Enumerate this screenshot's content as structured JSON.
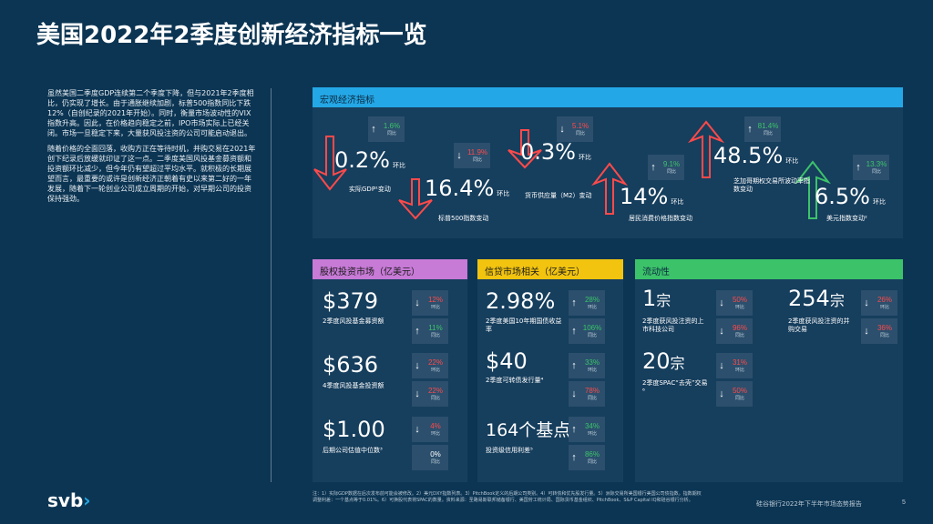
{
  "title": "美国2022年2季度创新经济指标一览",
  "intro": {
    "p1": "虽然美国二季度GDP连续第二个季度下降，但与2021年2季度相比，仍实现了增长。由于通胀继续加剧，标普500指数同比下跌12%（自创纪录的2021年开始）。同时，衡量市场波动性的VIX指数升高。因此，在价格趋向稳定之前，IPO市场实际上已经关闭。市场一旦稳定下来，大量获风投注资的公司可能启动退出。",
    "p2": "随着价格的全面回落，收购方正在等待时机，并购交易在2021年创下纪录后放缓就印证了这一点。二季度美国风投基金募资额和投资额环比减少，但今年仍有望超过平均水平。就积极的长期展望而言，最重要的或许是创新经济正朝着有史以来第二好的一年发展，随着下一轮创业公司成立周期的开始，对早期公司的投资保持强劲。"
  },
  "macro": {
    "header": "宏观经济指标",
    "items": [
      {
        "value": "0.2%",
        "suffix": "环比",
        "label": "实际GDP¹变动",
        "chg": "1.6%",
        "chg_label": "同比",
        "dir": "up"
      },
      {
        "value": "16.4%",
        "suffix": "环比",
        "label": "标普500指数变动",
        "chg": "11.9%",
        "chg_label": "同比",
        "dir": "down"
      },
      {
        "value": "0.3%",
        "suffix": "环比",
        "label": "货币供应量（M2）变动",
        "chg": "5.1%",
        "chg_label": "同比",
        "dir": "down"
      },
      {
        "value": "14%",
        "suffix": "环比",
        "label": "居民消费价格指数变动",
        "chg": "9.1%",
        "chg_label": "同比",
        "dir": "up"
      },
      {
        "value": "48.5%",
        "suffix": "环比",
        "label": "芝加哥期权交易所波动率指数变动",
        "chg": "81.4%",
        "chg_label": "同比",
        "dir": "up"
      },
      {
        "value": "6.5%",
        "suffix": "环比",
        "label": "美元指数变动²",
        "chg": "13.3%",
        "chg_label": "同比",
        "dir": "up"
      }
    ]
  },
  "equity": {
    "header": "股权投资市场（亿美元）",
    "items": [
      {
        "value": "$379",
        "label": "2季度风投基金募资额",
        "chg1": "12%",
        "chg1_label": "环比",
        "dir1": "down",
        "chg2": "11%",
        "chg2_label": "同比",
        "dir2": "up"
      },
      {
        "value": "$636",
        "label": "4季度风投基金投资额",
        "chg1": "22%",
        "chg1_label": "环比",
        "dir1": "down",
        "chg2": "22%",
        "chg2_label": "同比",
        "dir2": "down"
      },
      {
        "value": "$1.00",
        "label": "后期公司估值中位数³",
        "chg1": "4%",
        "chg1_label": "环比",
        "dir1": "down",
        "chg2": "0%",
        "chg2_label": "同比",
        "dir2": "neutral"
      }
    ]
  },
  "credit": {
    "header": "信贷市场相关（亿美元）",
    "items": [
      {
        "value": "2.98%",
        "label": "2季度美国10年期国债收益率",
        "chg1": "28%",
        "chg1_label": "环比",
        "dir1": "up",
        "chg2": "106%",
        "chg2_label": "同比",
        "dir2": "up"
      },
      {
        "value": "$40",
        "label": "2季度可转债发行量⁴",
        "chg1": "33%",
        "chg1_label": "环比",
        "dir1": "up",
        "chg2": "78%",
        "chg2_label": "同比",
        "dir2": "down"
      },
      {
        "value": "164个基点",
        "label": "投资级信用利差⁵",
        "chg1": "34%",
        "chg1_label": "环比",
        "dir1": "up",
        "chg2": "86%",
        "chg2_label": "同比",
        "dir2": "up"
      }
    ]
  },
  "liquidity": {
    "header": "流动性",
    "items": [
      {
        "value": "1",
        "unit": "宗",
        "label": "2季度获风投注资的上市科技公司",
        "chg1": "50%",
        "chg1_label": "环比",
        "dir1": "down",
        "chg2": "96%",
        "chg2_label": "同比",
        "dir2": "down"
      },
      {
        "value": "254",
        "unit": "宗",
        "label": "2季度获风投注资的并购交易",
        "chg1": "26%",
        "chg1_label": "环比",
        "dir1": "down",
        "chg2": "36%",
        "chg2_label": "同比",
        "dir2": "down"
      },
      {
        "value": "20",
        "unit": "宗",
        "label": "2季度SPAC“去壳”交易⁶",
        "chg1": "31%",
        "chg1_label": "环比",
        "dir1": "down",
        "chg2": "50%",
        "chg2_label": "同比",
        "dir2": "down"
      }
    ]
  },
  "footnote": "注：1）实际GDP数据在后次发布前可能会被修改。2）美元DXY指数列表。3）PitchBook定义的后期公司类别。4）可转债和优先股发行量。5）洲际交易所美国银行美国公司债指数。指数期权调整利差：一个基点等于0.01%。6）可换股代表将SPAC的数量。资料来源：圣路易斯联邦储备银行、美国劳工统计局、国际货币基金组织、PitchBook、S&P Capital IQ和硅谷银行分析。",
  "logo": {
    "text": "svb",
    "mark": "›"
  },
  "footer": "硅谷银行2022年下半年市场态势报告",
  "page": "5",
  "colors": {
    "macro": "#24a7e6",
    "equity": "#c77ad6",
    "credit": "#f2c40f",
    "liquidity": "#3cc36a",
    "up": "#3cc36a",
    "down": "#ff4a4a",
    "arrow_down": "#ff4a4a",
    "arrow_up_green": "#3cc36a"
  }
}
